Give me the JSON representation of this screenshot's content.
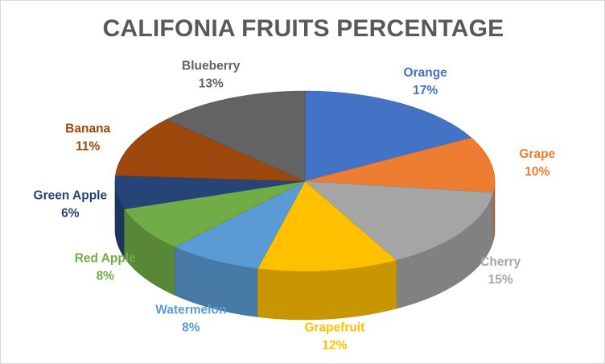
{
  "chart_data": {
    "type": "pie",
    "title": "CALIFONIA FRUITS PERCENTAGE",
    "slices": [
      {
        "label": "Orange",
        "value": 17,
        "pct": "17%",
        "color": "#4472c4"
      },
      {
        "label": "Grape",
        "value": 10,
        "pct": "10%",
        "color": "#ed7d31"
      },
      {
        "label": "Cherry",
        "value": 15,
        "pct": "15%",
        "color": "#a5a5a5"
      },
      {
        "label": "Grapefruit",
        "value": 12,
        "pct": "12%",
        "color": "#ffc000"
      },
      {
        "label": "Watermelon",
        "value": 8,
        "pct": "8%",
        "color": "#5b9bd5"
      },
      {
        "label": "Red Apple",
        "value": 8,
        "pct": "8%",
        "color": "#70ad47"
      },
      {
        "label": "Green Apple",
        "value": 6,
        "pct": "6%",
        "color": "#264478"
      },
      {
        "label": "Banana",
        "value": 11,
        "pct": "11%",
        "color": "#9e480e"
      },
      {
        "label": "Blueberry",
        "value": 13,
        "pct": "13%",
        "color": "#636363"
      }
    ],
    "style": "3d-pie"
  }
}
